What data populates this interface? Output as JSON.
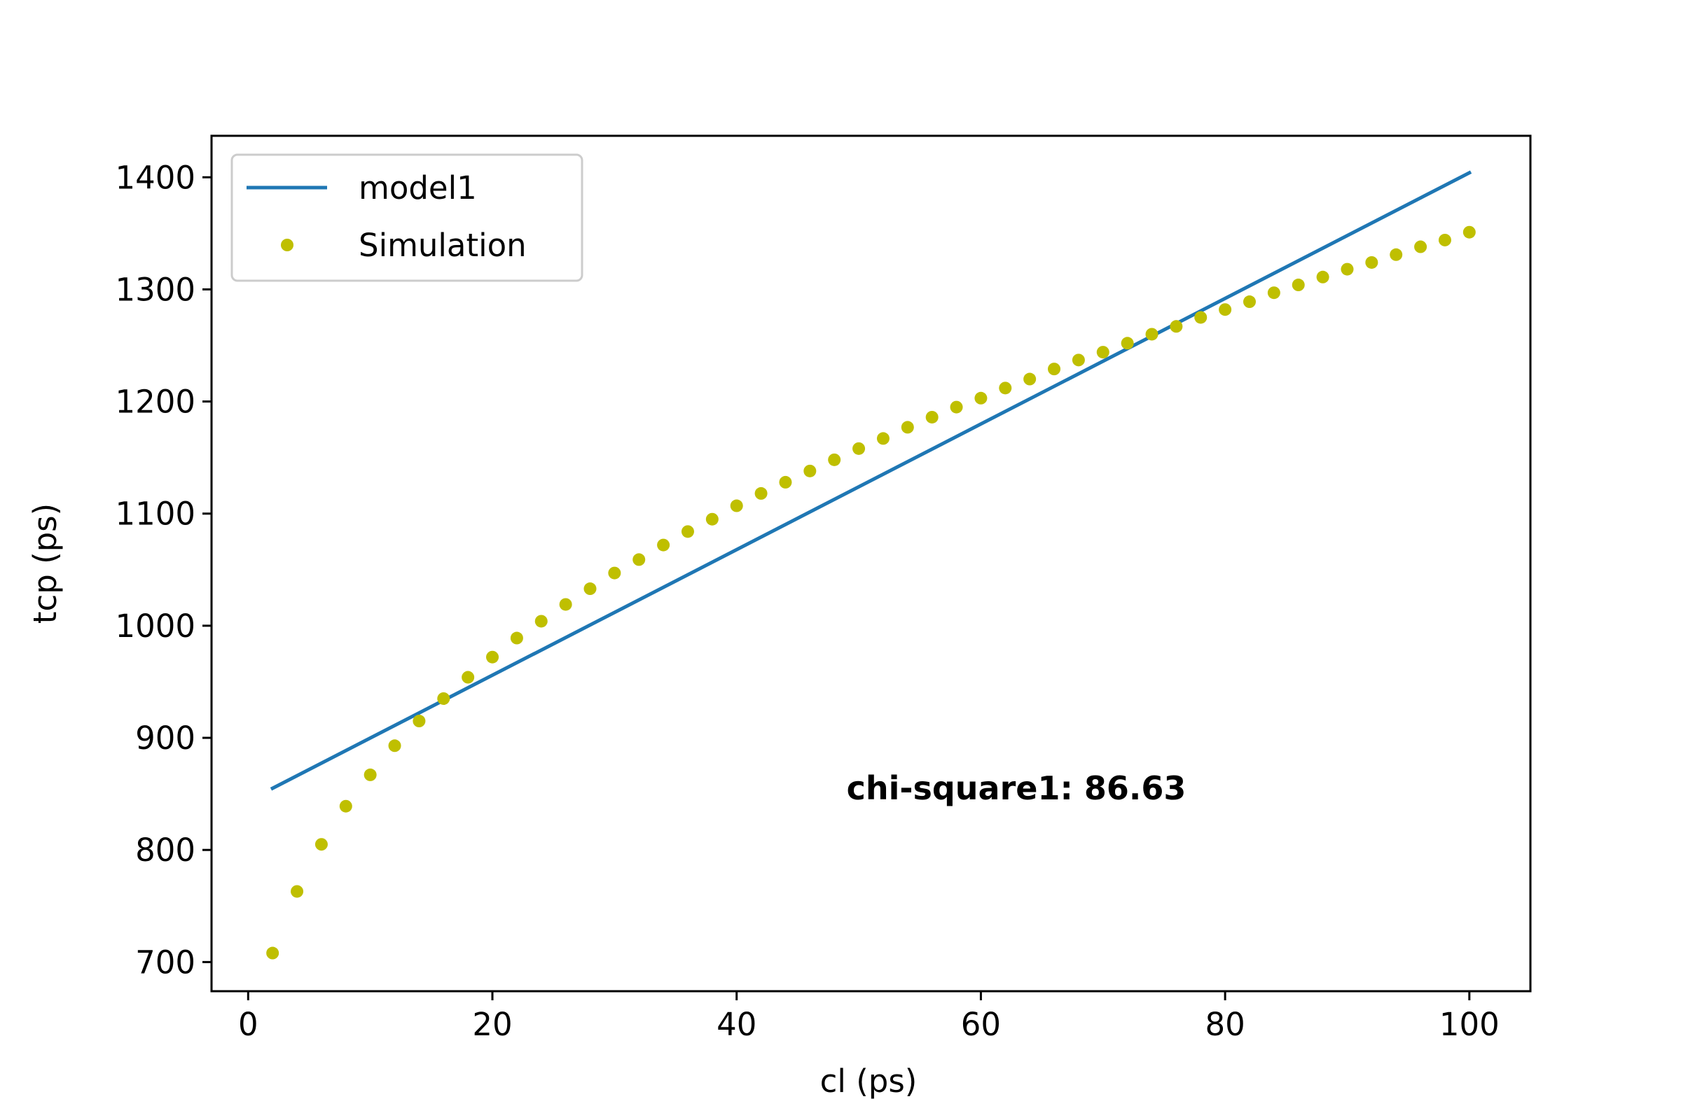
{
  "chart_data": {
    "type": "line",
    "title": "",
    "xlabel": "cl (ps)",
    "ylabel": "tcp (ps)",
    "xlim": [
      -3,
      105
    ],
    "ylim": [
      674,
      1437
    ],
    "xticks": [
      0,
      20,
      40,
      60,
      80,
      100
    ],
    "yticks": [
      700,
      800,
      900,
      1000,
      1100,
      1200,
      1300,
      1400
    ],
    "grid": false,
    "legend_position": "top-left",
    "series": [
      {
        "name": "model1",
        "style": "line",
        "color": "#1f77b4",
        "x": [
          2,
          100
        ],
        "y": [
          855,
          1404
        ]
      },
      {
        "name": "Simulation",
        "style": "dots",
        "color": "#bfbf00",
        "x": [
          2,
          4,
          6,
          8,
          10,
          12,
          14,
          16,
          18,
          20,
          22,
          24,
          26,
          28,
          30,
          32,
          34,
          36,
          38,
          40,
          42,
          44,
          46,
          48,
          50,
          52,
          54,
          56,
          58,
          60,
          62,
          64,
          66,
          68,
          70,
          72,
          74,
          76,
          78,
          80,
          82,
          84,
          86,
          88,
          90,
          92,
          94,
          96,
          98,
          100
        ],
        "y": [
          708,
          763,
          805,
          839,
          867,
          893,
          915,
          935,
          954,
          972,
          989,
          1004,
          1019,
          1033,
          1047,
          1059,
          1072,
          1084,
          1095,
          1107,
          1118,
          1128,
          1138,
          1148,
          1158,
          1167,
          1177,
          1186,
          1195,
          1203,
          1212,
          1220,
          1229,
          1237,
          1244,
          1252,
          1260,
          1267,
          1275,
          1282,
          1289,
          1297,
          1304,
          1311,
          1318,
          1324,
          1331,
          1338,
          1344,
          1351
        ]
      }
    ],
    "annotations": [
      {
        "text": "chi-square1: 86.63",
        "x": 49,
        "y": 855
      }
    ]
  }
}
